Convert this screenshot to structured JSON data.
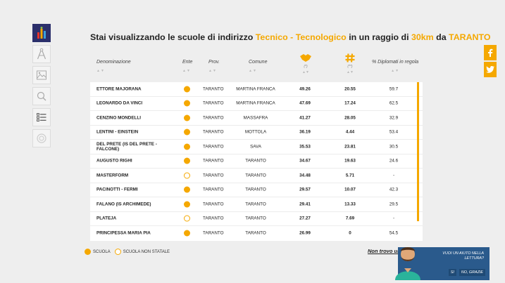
{
  "heading": {
    "prefix": "Stai visualizzando le scuole di indirizzo ",
    "indirizzo": "Tecnico - Tecnologico",
    "middle": " in un raggio di ",
    "radius": "30km",
    "da": " da ",
    "city": "TARANTO"
  },
  "sidebar": {
    "items": [
      "chart-icon",
      "compass-icon",
      "map-icon",
      "search-icon",
      "list-icon",
      "globe-icon"
    ]
  },
  "table": {
    "headers": {
      "denominazione": "Denominazione",
      "ente": "Ente",
      "prov": "Prov.",
      "comune": "Comune",
      "v1_sub": "(*)",
      "v2_sub": "(**)",
      "pct": "% Diplomati in regola"
    },
    "sort_glyph": "▲▼",
    "rows": [
      {
        "name": "ETTORE MAJORANA",
        "statale": true,
        "prov": "TARANTO",
        "comune": "MARTINA FRANCA",
        "v1": "49.26",
        "v2": "20.55",
        "pct": "59.7"
      },
      {
        "name": "LEONARDO DA VINCI",
        "statale": true,
        "prov": "TARANTO",
        "comune": "MARTINA FRANCA",
        "v1": "47.69",
        "v2": "17.24",
        "pct": "62.5"
      },
      {
        "name": "CENZINO MONDELLI",
        "statale": true,
        "prov": "TARANTO",
        "comune": "MASSAFRA",
        "v1": "41.27",
        "v2": "28.05",
        "pct": "32.9"
      },
      {
        "name": "LENTINI - EINSTEIN",
        "statale": true,
        "prov": "TARANTO",
        "comune": "MOTTOLA",
        "v1": "36.19",
        "v2": "4.44",
        "pct": "53.4"
      },
      {
        "name": "DEL PRETE (IS DEL PRETE - FALCONE)",
        "statale": true,
        "prov": "TARANTO",
        "comune": "SAVA",
        "v1": "35.53",
        "v2": "23.81",
        "pct": "30.5"
      },
      {
        "name": "AUGUSTO RIGHI",
        "statale": true,
        "prov": "TARANTO",
        "comune": "TARANTO",
        "v1": "34.67",
        "v2": "19.63",
        "pct": "24.6"
      },
      {
        "name": "MASTERFORM",
        "statale": false,
        "prov": "TARANTO",
        "comune": "TARANTO",
        "v1": "34.48",
        "v2": "5.71",
        "pct": "-"
      },
      {
        "name": "PACINOTTI - FERMI",
        "statale": true,
        "prov": "TARANTO",
        "comune": "TARANTO",
        "v1": "29.57",
        "v2": "10.07",
        "pct": "42.3"
      },
      {
        "name": "FALANO (IS ARCHIMEDE)",
        "statale": true,
        "prov": "TARANTO",
        "comune": "TARANTO",
        "v1": "29.41",
        "v2": "13.33",
        "pct": "29.5"
      },
      {
        "name": "PLATEJA",
        "statale": false,
        "prov": "TARANTO",
        "comune": "TARANTO",
        "v1": "27.27",
        "v2": "7.69",
        "pct": "-"
      },
      {
        "name": "PRINCIPESSA MARIA PIA",
        "statale": true,
        "prov": "TARANTO",
        "comune": "TARANTO",
        "v1": "26.99",
        "v2": "0",
        "pct": "54.5"
      }
    ]
  },
  "legend": {
    "scuola": "SCUOLA",
    "non_statale": "SCUOLA NON STATALE"
  },
  "cta_link": "Non trovo una",
  "help": {
    "text": "VUOI UN AIUTO NELLA LETTURA?",
    "yes": "SI",
    "no": "NO, GRAZIE"
  },
  "social": [
    "facebook-icon",
    "twitter-icon"
  ],
  "colors": {
    "accent": "#f5a800",
    "sidebar_active": "#2b2f6b",
    "help_bg": "#2a5a8c"
  }
}
